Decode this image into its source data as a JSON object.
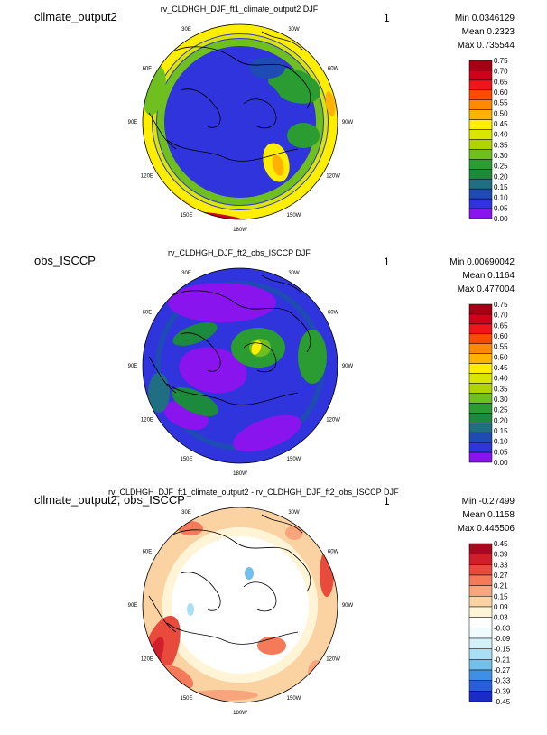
{
  "panels": [
    {
      "case_label": "cllmate_output2",
      "title": "rv_CLDHGH_DJF_ft1_climate_output2  DJF",
      "number": "1",
      "min": "Min 0.0346129",
      "mean": "Mean 0.2323",
      "max": "Max 0.735544",
      "colorbar": {
        "labels": [
          "0.75",
          "0.70",
          "0.65",
          "0.60",
          "0.55",
          "0.50",
          "0.45",
          "0.40",
          "0.35",
          "0.30",
          "0.25",
          "0.20",
          "0.15",
          "0.10",
          "0.05",
          "0.00"
        ],
        "colors": [
          "#a50013",
          "#d0011a",
          "#f0141b",
          "#ff4a00",
          "#ff8a00",
          "#ffb300",
          "#ffee00",
          "#d8e600",
          "#b0d400",
          "#6fbf1e",
          "#2a9c32",
          "#1c8a3c",
          "#1f6e82",
          "#1f4bb4",
          "#2f34dd",
          "#8a14ee"
        ]
      },
      "lon_labels": [
        "30E",
        "30W",
        "60E",
        "60W",
        "90E",
        "90W",
        "120E",
        "120W",
        "150E",
        "150W",
        "180W"
      ]
    },
    {
      "case_label": "obs_ISCCP",
      "title": "rv_CLDHGH_DJF_ft2_obs_ISCCP  DJF",
      "number": "1",
      "min": "Min 0.00690042",
      "mean": "Mean 0.1164",
      "max": "Max 0.477004",
      "colorbar": {
        "labels": [
          "0.75",
          "0.70",
          "0.65",
          "0.60",
          "0.55",
          "0.50",
          "0.45",
          "0.40",
          "0.35",
          "0.30",
          "0.25",
          "0.20",
          "0.15",
          "0.10",
          "0.05",
          "0.00"
        ],
        "colors": [
          "#a50013",
          "#d0011a",
          "#f0141b",
          "#ff4a00",
          "#ff8a00",
          "#ffb300",
          "#ffee00",
          "#d8e600",
          "#b0d400",
          "#6fbf1e",
          "#2a9c32",
          "#1c8a3c",
          "#1f6e82",
          "#1f4bb4",
          "#2f34dd",
          "#8a14ee"
        ]
      },
      "lon_labels": [
        "30E",
        "30W",
        "60E",
        "60W",
        "90E",
        "90W",
        "120E",
        "120W",
        "150E",
        "150W",
        "180W"
      ]
    },
    {
      "case_label": "cllmate_output2, obs_ISCCP",
      "title": "rv_CLDHGH_DJF_ft1_climate_output2 - rv_CLDHGH_DJF_ft2_obs_ISCCP  DJF",
      "number": "1",
      "min": "Min -0.27499",
      "mean": "Mean 0.1158",
      "max": "Max 0.445506",
      "colorbar": {
        "labels": [
          "0.45",
          "0.39",
          "0.33",
          "0.27",
          "0.21",
          "0.15",
          "0.09",
          "0.03",
          "-0.03",
          "-0.09",
          "-0.15",
          "-0.21",
          "-0.27",
          "-0.33",
          "-0.39",
          "-0.45"
        ],
        "colors": [
          "#a50b1d",
          "#d01f2a",
          "#e84a3c",
          "#f47a5a",
          "#f8a57e",
          "#fbd3a3",
          "#fff5d6",
          "#ffffff",
          "#f0fbff",
          "#d4f1fa",
          "#a8dff5",
          "#73c0ef",
          "#3f8fe4",
          "#2a5ed9",
          "#1a2bc9"
        ]
      },
      "lon_labels": [
        "30E",
        "30W",
        "60E",
        "60W",
        "90E",
        "90W",
        "120E",
        "120W",
        "150E",
        "150W",
        "180W"
      ]
    }
  ],
  "chart_data": [
    {
      "type": "heatmap",
      "title": "rv_CLDHGH_DJF_ft1_climate_output2  DJF",
      "projection": "north polar stereographic",
      "stats": {
        "min": 0.0346129,
        "mean": 0.2323,
        "max": 0.735544
      },
      "levels": [
        0.0,
        0.05,
        0.1,
        0.15,
        0.2,
        0.25,
        0.3,
        0.35,
        0.4,
        0.45,
        0.5,
        0.55,
        0.6,
        0.65,
        0.7,
        0.75
      ]
    },
    {
      "type": "heatmap",
      "title": "rv_CLDHGH_DJF_ft2_obs_ISCCP  DJF",
      "projection": "north polar stereographic",
      "stats": {
        "min": 0.00690042,
        "mean": 0.1164,
        "max": 0.477004
      },
      "levels": [
        0.0,
        0.05,
        0.1,
        0.15,
        0.2,
        0.25,
        0.3,
        0.35,
        0.4,
        0.45,
        0.5,
        0.55,
        0.6,
        0.65,
        0.7,
        0.75
      ]
    },
    {
      "type": "heatmap",
      "title": "rv_CLDHGH_DJF_ft1_climate_output2 - rv_CLDHGH_DJF_ft2_obs_ISCCP  DJF",
      "projection": "north polar stereographic",
      "stats": {
        "min": -0.27499,
        "mean": 0.1158,
        "max": 0.445506
      },
      "levels": [
        -0.45,
        -0.39,
        -0.33,
        -0.27,
        -0.21,
        -0.15,
        -0.09,
        -0.03,
        0.03,
        0.09,
        0.15,
        0.21,
        0.27,
        0.33,
        0.39,
        0.45
      ]
    }
  ]
}
